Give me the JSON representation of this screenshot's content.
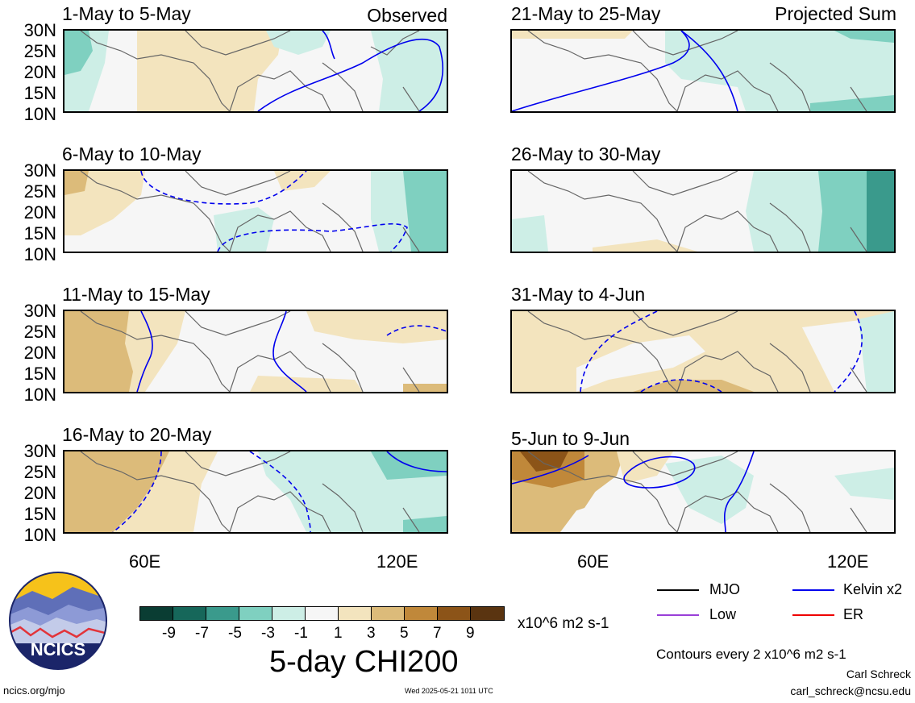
{
  "header": {
    "left_label": "Observed",
    "right_label": "Projected Sum"
  },
  "panels": [
    {
      "title": "1-May to 5-May"
    },
    {
      "title": "6-May to 10-May"
    },
    {
      "title": "11-May to 15-May"
    },
    {
      "title": "16-May to 20-May"
    },
    {
      "title": "21-May to 25-May"
    },
    {
      "title": "26-May to 30-May"
    },
    {
      "title": "31-May to 4-Jun"
    },
    {
      "title": "5-Jun to 9-Jun"
    }
  ],
  "lat_labels": [
    "30N",
    "25N",
    "20N",
    "15N",
    "10N"
  ],
  "lon_labels": [
    "60E",
    "120E"
  ],
  "colorbar": {
    "ticks": [
      "-9",
      "-7",
      "-5",
      "-3",
      "-1",
      "1",
      "3",
      "5",
      "7",
      "9"
    ],
    "colors": [
      "#0a3d33",
      "#16675a",
      "#3a9a8c",
      "#7fd0c0",
      "#cdeee6",
      "#f6f6f6",
      "#f3e4be",
      "#dcbb7a",
      "#c0883a",
      "#8c5418",
      "#5a3410"
    ],
    "units": "x10^6 m2 s-1",
    "title": "5-day CHI200"
  },
  "legend": {
    "mjo": "MJO",
    "kelvin": "Kelvin x2",
    "low": "Low",
    "er": "ER",
    "mjo_color": "#000000",
    "kelvin_color": "#0000ee",
    "low_color": "#9a3fd8",
    "er_color": "#ee0000"
  },
  "contour_note": "Contours every 2 x10^6 m2 s-1",
  "footer": {
    "logo_text": "NCICS",
    "site": "ncics.org/mjo",
    "timestamp": "Wed 2025-05-21 1011 UTC",
    "author": "Carl Schreck",
    "email": "carl_schreck@ncsu.edu"
  }
}
